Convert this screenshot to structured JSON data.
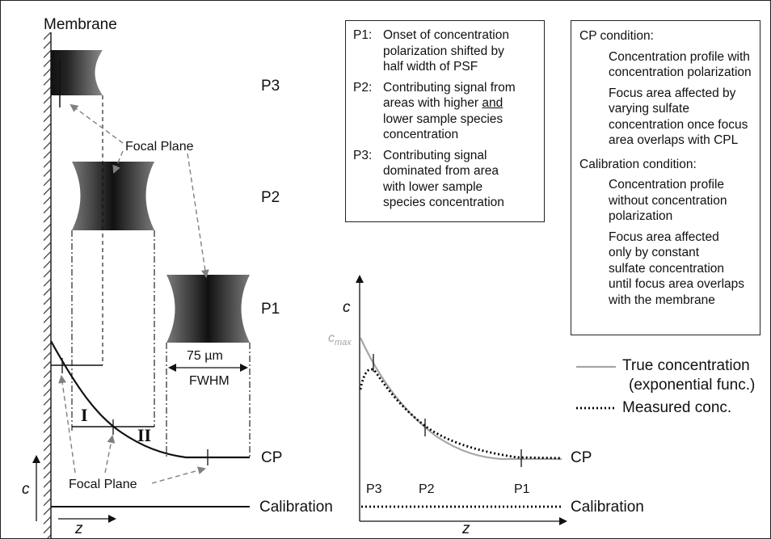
{
  "left_panel": {
    "membrane_label": "Membrane",
    "positions": {
      "p3": "P3",
      "p2": "P2",
      "p1": "P1",
      "cp": "CP"
    },
    "focal_plane_upper": "Focal Plane",
    "focal_plane_lower": "Focal Plane",
    "fwhm_value": "75 µm",
    "fwhm_label": "FWHM",
    "region_one": "I",
    "region_two": "II",
    "calibration_label": "Calibration",
    "axis_c": "c",
    "axis_z": "z"
  },
  "legend_box_positions": {
    "items": [
      {
        "key": "P1:",
        "lines": [
          "Onset of concentration",
          "polarization shifted by",
          "half width of PSF"
        ]
      },
      {
        "key": "P2:",
        "lines_pre": "Contributing signal from",
        "line2_pre": "areas with higher ",
        "line2_ul": "and",
        "lines_post": [
          "lower sample species",
          "concentration"
        ]
      },
      {
        "key": "P3:",
        "lines": [
          "Contributing signal",
          "dominated from area",
          "with lower sample",
          "species concentration"
        ]
      }
    ]
  },
  "legend_box_conditions": {
    "cp_header": "CP condition:",
    "cp_items": [
      [
        "Concentration profile with",
        "concentration polarization"
      ],
      [
        "Focus area affected by",
        "varying sulfate",
        "concentration once focus",
        "area overlaps with CPL"
      ]
    ],
    "cal_header": "Calibration condition:",
    "cal_items": [
      [
        "Concentration profile",
        "without concentration",
        "polarization"
      ],
      [
        "Focus area affected",
        "only by constant",
        "sulfate concentration",
        "until focus area overlaps",
        "with the membrane"
      ]
    ]
  },
  "right_chart": {
    "axis_c": "c",
    "cmax_label": "c",
    "cmax_sub": "max",
    "axis_z": "z",
    "ticks": [
      "P3",
      "P2",
      "P1"
    ],
    "cp_label": "CP",
    "calibration_label": "Calibration",
    "legend": [
      {
        "lines": [
          "True concentration",
          "(exponential func.)"
        ],
        "style": "solid",
        "color": "#a6a6a6"
      },
      {
        "lines": [
          "Measured conc."
        ],
        "style": "dotted",
        "color": "#000000"
      }
    ]
  },
  "colors": {
    "true_curve": "#a6a6a6",
    "measured_curve": "#000000",
    "focus_dark": "#111111",
    "focus_light": "#7a7a7a",
    "arrow_gray": "#808080"
  }
}
